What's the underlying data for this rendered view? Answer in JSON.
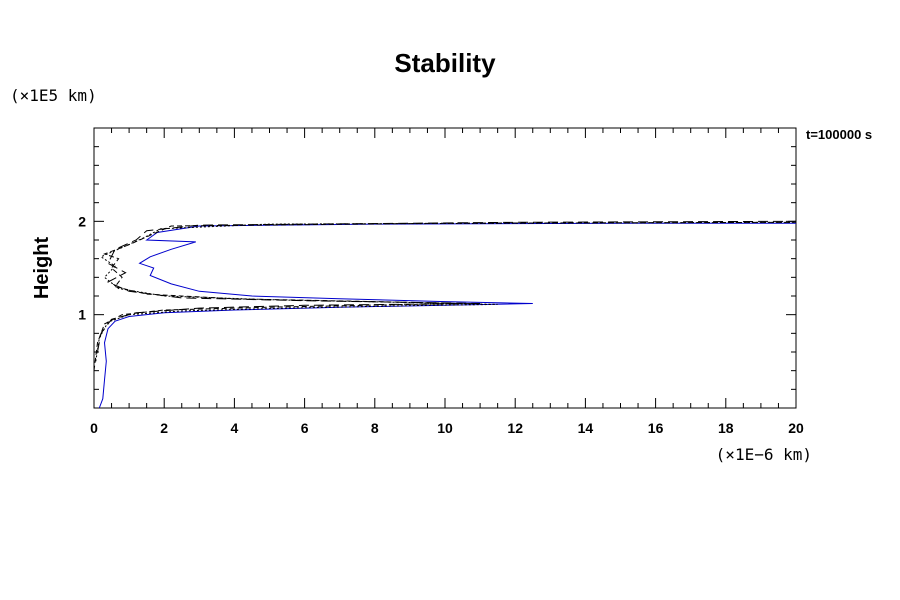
{
  "chart_data": {
    "type": "line",
    "title": "Stability",
    "ylabel": "Height",
    "y_unit": "(×1E5 km)",
    "x_unit": "(×1E−6 km)",
    "time_label": "t=100000 s",
    "xlim": [
      0,
      20
    ],
    "ylim": [
      0,
      3
    ],
    "x_ticks": [
      "0",
      "2",
      "4",
      "6",
      "8",
      "10",
      "12",
      "14",
      "16",
      "18",
      "20"
    ],
    "y_ticks": [
      "1",
      "2"
    ],
    "grid": false,
    "series": [
      {
        "color": "#0000cc",
        "style": "solid",
        "points": [
          [
            0.15,
            0.0
          ],
          [
            0.25,
            0.1
          ],
          [
            0.3,
            0.3
          ],
          [
            0.35,
            0.5
          ],
          [
            0.3,
            0.7
          ],
          [
            0.4,
            0.85
          ],
          [
            0.6,
            0.93
          ],
          [
            1.0,
            0.98
          ],
          [
            2.0,
            1.02
          ],
          [
            4.0,
            1.05
          ],
          [
            7.0,
            1.08
          ],
          [
            10.0,
            1.1
          ],
          [
            12.5,
            1.12
          ],
          [
            10.0,
            1.14
          ],
          [
            7.0,
            1.17
          ],
          [
            4.5,
            1.2
          ],
          [
            3.0,
            1.25
          ],
          [
            2.2,
            1.33
          ],
          [
            1.6,
            1.42
          ],
          [
            1.7,
            1.5
          ],
          [
            1.3,
            1.55
          ],
          [
            1.6,
            1.62
          ],
          [
            2.2,
            1.7
          ],
          [
            2.9,
            1.78
          ],
          [
            1.5,
            1.8
          ],
          [
            1.8,
            1.88
          ],
          [
            3.0,
            1.95
          ],
          [
            8.0,
            1.97
          ],
          [
            16.0,
            1.98
          ],
          [
            20.0,
            1.98
          ]
        ]
      },
      {
        "color": "#000000",
        "style": "dashed",
        "points": [
          [
            0.0,
            0.4
          ],
          [
            0.1,
            0.7
          ],
          [
            0.3,
            0.9
          ],
          [
            0.8,
            1.0
          ],
          [
            2.0,
            1.05
          ],
          [
            5.0,
            1.08
          ],
          [
            9.0,
            1.11
          ],
          [
            10.5,
            1.12
          ],
          [
            8.0,
            1.14
          ],
          [
            4.0,
            1.17
          ],
          [
            1.5,
            1.22
          ],
          [
            0.6,
            1.3
          ],
          [
            0.8,
            1.4
          ],
          [
            0.5,
            1.5
          ],
          [
            0.7,
            1.6
          ],
          [
            0.3,
            1.65
          ],
          [
            1.0,
            1.75
          ],
          [
            1.6,
            1.85
          ],
          [
            2.2,
            1.95
          ],
          [
            10.0,
            1.98
          ],
          [
            20.0,
            1.99
          ]
        ]
      },
      {
        "color": "#000000",
        "style": "longdash",
        "points": [
          [
            0.1,
            0.6
          ],
          [
            0.2,
            0.8
          ],
          [
            0.5,
            0.95
          ],
          [
            1.2,
            1.02
          ],
          [
            3.0,
            1.07
          ],
          [
            6.0,
            1.1
          ],
          [
            11.0,
            1.12
          ],
          [
            6.0,
            1.15
          ],
          [
            2.5,
            1.18
          ],
          [
            1.0,
            1.25
          ],
          [
            0.4,
            1.35
          ],
          [
            0.9,
            1.45
          ],
          [
            0.4,
            1.55
          ],
          [
            0.6,
            1.7
          ],
          [
            1.2,
            1.8
          ],
          [
            1.5,
            1.9
          ],
          [
            3.0,
            1.96
          ],
          [
            12.0,
            1.99
          ],
          [
            20.0,
            2.0
          ]
        ]
      },
      {
        "color": "#000000",
        "style": "dotted",
        "points": [
          [
            0.05,
            0.5
          ],
          [
            0.15,
            0.75
          ],
          [
            0.4,
            0.92
          ],
          [
            1.0,
            1.0
          ],
          [
            2.5,
            1.04
          ],
          [
            5.5,
            1.07
          ],
          [
            9.5,
            1.1
          ],
          [
            11.5,
            1.11
          ],
          [
            9.0,
            1.13
          ],
          [
            5.0,
            1.16
          ],
          [
            2.0,
            1.2
          ],
          [
            0.7,
            1.28
          ],
          [
            0.3,
            1.4
          ],
          [
            0.6,
            1.52
          ],
          [
            0.2,
            1.62
          ],
          [
            0.8,
            1.72
          ],
          [
            1.4,
            1.82
          ],
          [
            1.9,
            1.92
          ],
          [
            5.0,
            1.97
          ],
          [
            20.0,
            1.99
          ]
        ]
      }
    ]
  }
}
